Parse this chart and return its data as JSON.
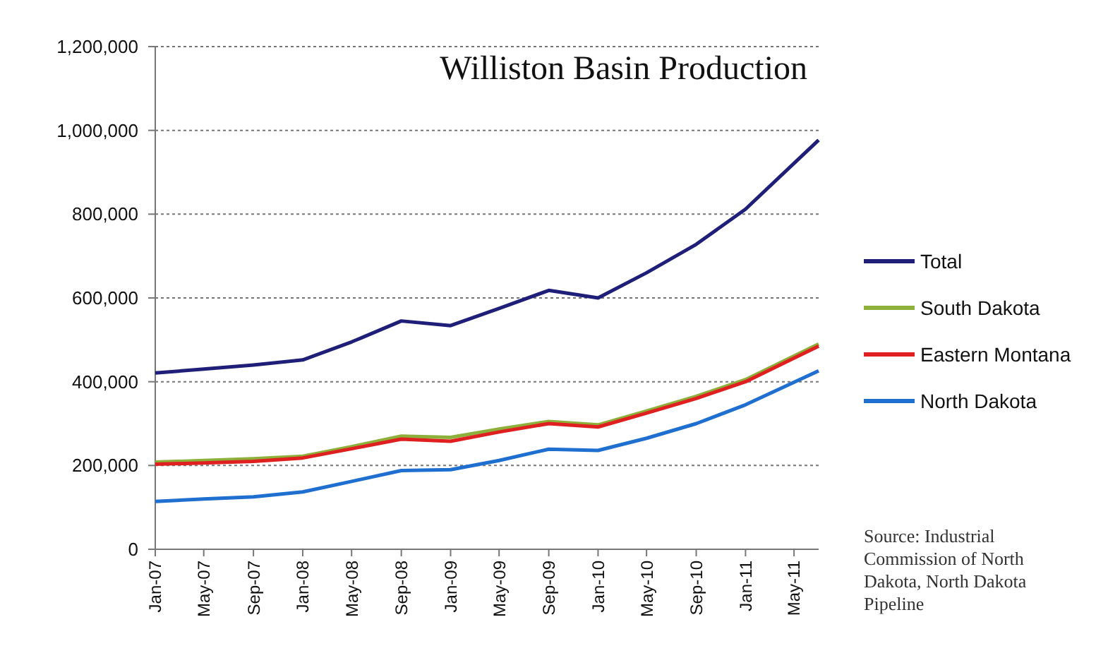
{
  "chart_data": {
    "type": "line",
    "title": "Williston Basin Production",
    "x": [
      "2007-01",
      "2007-05",
      "2007-09",
      "2008-01",
      "2008-05",
      "2008-09",
      "2009-01",
      "2009-05",
      "2009-09",
      "2010-01",
      "2010-05",
      "2010-09",
      "2011-01",
      "2011-07"
    ],
    "series": [
      {
        "name": "Total",
        "color": "#1f1f7a",
        "values": [
          421000,
          430000,
          440000,
          452000,
          495000,
          545000,
          534000,
          575000,
          618000,
          600000,
          660000,
          728000,
          812000,
          977000
        ]
      },
      {
        "name": "South Dakota",
        "color": "#8db03a",
        "values": [
          208000,
          212000,
          216000,
          222000,
          245000,
          270000,
          267000,
          287000,
          305000,
          297000,
          330000,
          365000,
          405000,
          490000
        ]
      },
      {
        "name": "Eastern Montana",
        "color": "#e02020",
        "values": [
          203000,
          206000,
          210000,
          218000,
          240000,
          263000,
          258000,
          280000,
          300000,
          292000,
          325000,
          360000,
          400000,
          485000
        ]
      },
      {
        "name": "North Dakota",
        "color": "#1f6fd0",
        "values": [
          114000,
          120000,
          125000,
          137000,
          162000,
          188000,
          190000,
          212000,
          239000,
          236000,
          265000,
          300000,
          345000,
          426000
        ]
      }
    ],
    "xlim": [
      "2007-01",
      "2011-07"
    ],
    "xticks": [
      {
        "value": "2007-01",
        "label": "Jan-07"
      },
      {
        "value": "2007-05",
        "label": "May-07"
      },
      {
        "value": "2007-09",
        "label": "Sep-07"
      },
      {
        "value": "2008-01",
        "label": "Jan-08"
      },
      {
        "value": "2008-05",
        "label": "May-08"
      },
      {
        "value": "2008-09",
        "label": "Sep-08"
      },
      {
        "value": "2009-01",
        "label": "Jan-09"
      },
      {
        "value": "2009-05",
        "label": "May-09"
      },
      {
        "value": "2009-09",
        "label": "Sep-09"
      },
      {
        "value": "2010-01",
        "label": "Jan-10"
      },
      {
        "value": "2010-05",
        "label": "May-10"
      },
      {
        "value": "2010-09",
        "label": "Sep-10"
      },
      {
        "value": "2011-01",
        "label": "Jan-11"
      },
      {
        "value": "2011-05",
        "label": "May-11"
      }
    ],
    "ylim": [
      0,
      1200000
    ],
    "yticks": [
      {
        "value": 0,
        "label": "0"
      },
      {
        "value": 200000,
        "label": "200,000"
      },
      {
        "value": 400000,
        "label": "400,000"
      },
      {
        "value": 600000,
        "label": "600,000"
      },
      {
        "value": 800000,
        "label": "800,000"
      },
      {
        "value": 1000000,
        "label": "1,000,000"
      },
      {
        "value": 1200000,
        "label": "1,200,000"
      }
    ],
    "grid": "y",
    "legend": "right",
    "marker": "none",
    "line_style": "solid",
    "annotations": [
      "Source: Industrial Commission of North Dakota, North Dakota Pipeline"
    ]
  }
}
